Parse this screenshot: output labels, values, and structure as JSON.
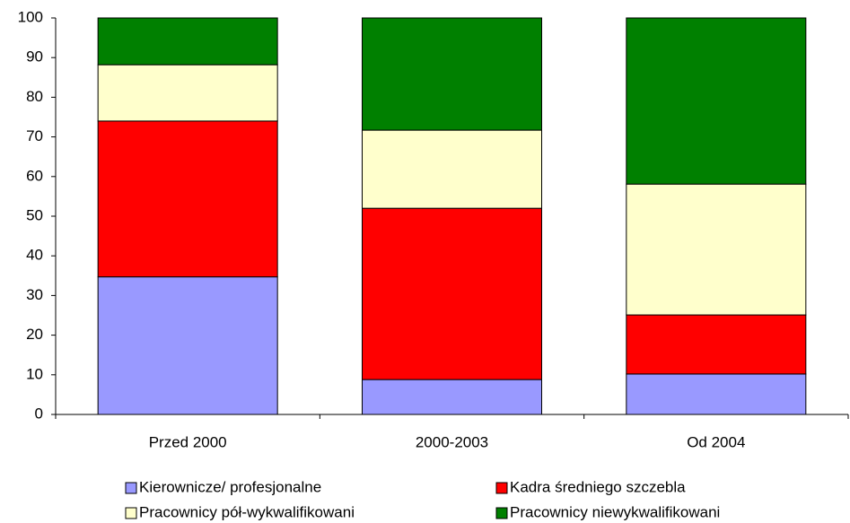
{
  "chart_data": {
    "type": "stacked_bar",
    "categories": [
      "Przed 2000",
      "2000-2003",
      "Od 2004"
    ],
    "series": [
      {
        "name": "Kierownicze/ profesjonalne",
        "color": "#9999ff",
        "values": [
          34.7,
          8.8,
          10.2
        ]
      },
      {
        "name": "Kadra średniego szczebla",
        "color": "#ff0000",
        "values": [
          39.3,
          43.2,
          14.9
        ]
      },
      {
        "name": "Pracownicy pół-wykwalifikowani",
        "color": "#ffffcc",
        "values": [
          14.2,
          19.7,
          33.0
        ]
      },
      {
        "name": "Pracownicy niewykwalifikowani",
        "color": "#008000",
        "values": [
          11.8,
          28.3,
          41.9
        ]
      }
    ],
    "ylim": [
      0,
      100
    ],
    "yticks": [
      0,
      10,
      20,
      30,
      40,
      50,
      60,
      70,
      80,
      90,
      100
    ],
    "grid": false
  }
}
